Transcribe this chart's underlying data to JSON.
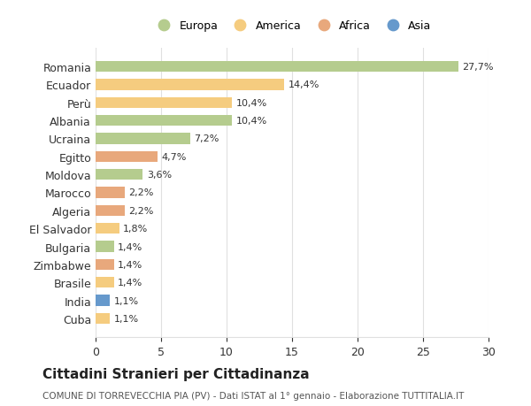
{
  "countries": [
    "Romania",
    "Ecuador",
    "Perù",
    "Albania",
    "Ucraina",
    "Egitto",
    "Moldova",
    "Marocco",
    "Algeria",
    "El Salvador",
    "Bulgaria",
    "Zimbabwe",
    "Brasile",
    "India",
    "Cuba"
  ],
  "values": [
    27.7,
    14.4,
    10.4,
    10.4,
    7.2,
    4.7,
    3.6,
    2.2,
    2.2,
    1.8,
    1.4,
    1.4,
    1.4,
    1.1,
    1.1
  ],
  "labels": [
    "27,7%",
    "14,4%",
    "10,4%",
    "10,4%",
    "7,2%",
    "4,7%",
    "3,6%",
    "2,2%",
    "2,2%",
    "1,8%",
    "1,4%",
    "1,4%",
    "1,4%",
    "1,1%",
    "1,1%"
  ],
  "continents": [
    "Europa",
    "America",
    "America",
    "Europa",
    "Europa",
    "Africa",
    "Europa",
    "Africa",
    "Africa",
    "America",
    "Europa",
    "Africa",
    "America",
    "Asia",
    "America"
  ],
  "colors": {
    "Europa": "#b5cc8e",
    "America": "#f5cc7f",
    "Africa": "#e8a87c",
    "Asia": "#6699cc"
  },
  "legend_order": [
    "Europa",
    "America",
    "Africa",
    "Asia"
  ],
  "title": "Cittadini Stranieri per Cittadinanza",
  "subtitle": "COMUNE DI TORREVECCHIA PIA (PV) - Dati ISTAT al 1° gennaio - Elaborazione TUTTITALIA.IT",
  "xlim": [
    0,
    30
  ],
  "xticks": [
    0,
    5,
    10,
    15,
    20,
    25,
    30
  ],
  "background_color": "#ffffff",
  "grid_color": "#e0e0e0"
}
